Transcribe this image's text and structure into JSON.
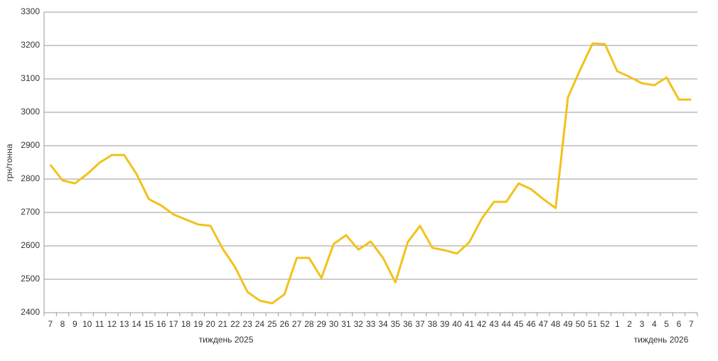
{
  "chart_data": {
    "type": "line",
    "y_label": "грн/тонна",
    "annotations": [
      "тиждень 2025",
      "тиждень 2026"
    ],
    "categories": [
      "7",
      "8",
      "9",
      "10",
      "11",
      "12",
      "13",
      "14",
      "15",
      "16",
      "17",
      "18",
      "19",
      "20",
      "21",
      "22",
      "23",
      "24",
      "25",
      "26",
      "27",
      "28",
      "29",
      "30",
      "31",
      "32",
      "33",
      "34",
      "35",
      "36",
      "37",
      "38",
      "39",
      "40",
      "41",
      "42",
      "43",
      "44",
      "45",
      "46",
      "47",
      "48",
      "49",
      "50",
      "51",
      "52",
      "1",
      "2",
      "3",
      "4",
      "5",
      "6",
      "7"
    ],
    "series": [
      {
        "color": "#f2c21b",
        "values": [
          2843,
          2796,
          2787,
          2815,
          2849,
          2872,
          2872,
          2815,
          2740,
          2721,
          2694,
          2679,
          2664,
          2660,
          2591,
          2536,
          2462,
          2436,
          2428,
          2455,
          2564,
          2564,
          2504,
          2606,
          2632,
          2589,
          2613,
          2564,
          2491,
          2611,
          2660,
          2594,
          2587,
          2577,
          2611,
          2681,
          2732,
          2732,
          2787,
          2770,
          2740,
          2713,
          3045,
          3128,
          3206,
          3204,
          3123,
          3106,
          3087,
          3081,
          3104,
          3038,
          3038
        ]
      }
    ],
    "ylim": [
      2400,
      3300
    ],
    "yticks": [
      2400,
      2500,
      2600,
      2700,
      2800,
      2900,
      3000,
      3100,
      3200,
      3300
    ],
    "grid": true
  }
}
